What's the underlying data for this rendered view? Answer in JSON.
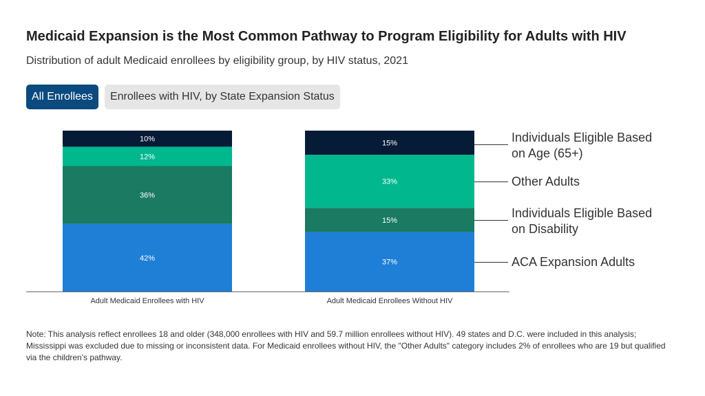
{
  "title": "Medicaid Expansion is the Most Common Pathway to Program Eligibility for Adults with HIV",
  "subtitle": "Distribution of adult Medicaid enrollees by eligibility group, by HIV status, 2021",
  "tabs": [
    {
      "label": "All Enrollees",
      "active": true
    },
    {
      "label": "Enrollees with HIV, by State Expansion Status",
      "active": false
    }
  ],
  "chart_data": {
    "type": "bar",
    "stacked": true,
    "categories": [
      "Adult Medicaid Enrollees with HIV",
      "Adult Medicaid Enrollees Without HIV"
    ],
    "series": [
      {
        "name": "ACA Expansion Adults",
        "legend_lines": [
          "ACA Expansion Adults"
        ],
        "color": "#1f7fd6",
        "values": [
          42,
          37
        ],
        "labels": [
          "42%",
          "37%"
        ]
      },
      {
        "name": "Individuals Eligible Based on Disability",
        "legend_lines": [
          "Individuals Eligible Based",
          "on Disability"
        ],
        "color": "#1a7a62",
        "values": [
          36,
          15
        ],
        "labels": [
          "36%",
          "15%"
        ]
      },
      {
        "name": "Other Adults",
        "legend_lines": [
          "Other Adults"
        ],
        "color": "#00b78e",
        "values": [
          12,
          33
        ],
        "labels": [
          "12%",
          "33%"
        ]
      },
      {
        "name": "Individuals Eligible Based on Age (65+)",
        "legend_lines": [
          "Individuals Eligible Based",
          "on Age (65+)"
        ],
        "color": "#061b36",
        "values": [
          10,
          15
        ],
        "labels": [
          "10%",
          "15%"
        ]
      }
    ],
    "ylim": [
      0,
      100
    ],
    "legend_position": "right"
  },
  "note": "Note: This analysis reflect enrollees 18 and older (348,000 enrollees with HIV and 59.7 million enrollees without HIV). 49 states and D.C. were included in this analysis; Mississippi was excluded due to missing or inconsistent data. For Medicaid enrollees without HIV, the \"Other Adults\" category includes 2% of enrollees who are 19 but qualified via the children's pathway."
}
